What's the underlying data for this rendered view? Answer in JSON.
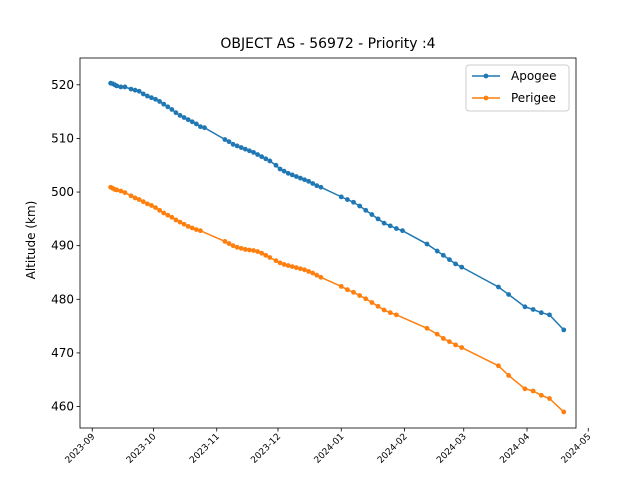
{
  "chart_data": {
    "type": "line",
    "title": "OBJECT AS - 56972 - Priority :4",
    "xlabel": "",
    "ylabel": "Altitude (km)",
    "xlim": [
      "2023-08-26",
      "2024-04-25"
    ],
    "ylim": [
      456,
      525
    ],
    "xticks": [
      "2023-09",
      "2023-10",
      "2023-11",
      "2023-12",
      "2024-01",
      "2024-02",
      "2024-03",
      "2024-04",
      "2024-05"
    ],
    "yticks": [
      460,
      470,
      480,
      490,
      500,
      510,
      520
    ],
    "grid": false,
    "legend_position": "top-right",
    "series": [
      {
        "name": "Apogee",
        "color": "#1f77b4",
        "points": [
          [
            "2023-09-10",
            520.3
          ],
          [
            "2023-09-11",
            520.2
          ],
          [
            "2023-09-12",
            520.0
          ],
          [
            "2023-09-13",
            519.8
          ],
          [
            "2023-09-15",
            519.6
          ],
          [
            "2023-09-17",
            519.6
          ],
          [
            "2023-09-20",
            519.2
          ],
          [
            "2023-09-22",
            519.0
          ],
          [
            "2023-09-24",
            518.8
          ],
          [
            "2023-09-26",
            518.3
          ],
          [
            "2023-09-28",
            517.9
          ],
          [
            "2023-09-30",
            517.6
          ],
          [
            "2023-10-02",
            517.3
          ],
          [
            "2023-10-04",
            516.9
          ],
          [
            "2023-10-06",
            516.4
          ],
          [
            "2023-10-08",
            515.9
          ],
          [
            "2023-10-10",
            515.4
          ],
          [
            "2023-10-12",
            514.8
          ],
          [
            "2023-10-14",
            514.3
          ],
          [
            "2023-10-16",
            513.9
          ],
          [
            "2023-10-18",
            513.5
          ],
          [
            "2023-10-20",
            513.1
          ],
          [
            "2023-10-22",
            512.7
          ],
          [
            "2023-10-24",
            512.2
          ],
          [
            "2023-10-26",
            512.0
          ],
          [
            "2023-11-05",
            509.8
          ],
          [
            "2023-11-07",
            509.4
          ],
          [
            "2023-11-09",
            508.9
          ],
          [
            "2023-11-11",
            508.6
          ],
          [
            "2023-11-13",
            508.3
          ],
          [
            "2023-11-15",
            508.0
          ],
          [
            "2023-11-17",
            507.7
          ],
          [
            "2023-11-19",
            507.4
          ],
          [
            "2023-11-21",
            507.0
          ],
          [
            "2023-11-23",
            506.6
          ],
          [
            "2023-11-25",
            506.2
          ],
          [
            "2023-11-27",
            505.8
          ],
          [
            "2023-11-30",
            505.0
          ],
          [
            "2023-12-02",
            504.3
          ],
          [
            "2023-12-04",
            503.9
          ],
          [
            "2023-12-06",
            503.5
          ],
          [
            "2023-12-08",
            503.2
          ],
          [
            "2023-12-10",
            502.9
          ],
          [
            "2023-12-12",
            502.6
          ],
          [
            "2023-12-14",
            502.3
          ],
          [
            "2023-12-16",
            502.0
          ],
          [
            "2023-12-18",
            501.6
          ],
          [
            "2023-12-20",
            501.2
          ],
          [
            "2023-12-22",
            500.9
          ],
          [
            "2024-01-01",
            499.1
          ],
          [
            "2024-01-04",
            498.6
          ],
          [
            "2024-01-07",
            498.1
          ],
          [
            "2024-01-10",
            497.4
          ],
          [
            "2024-01-13",
            496.6
          ],
          [
            "2024-01-16",
            495.8
          ],
          [
            "2024-01-19",
            495.0
          ],
          [
            "2024-01-22",
            494.2
          ],
          [
            "2024-01-25",
            493.7
          ],
          [
            "2024-01-28",
            493.2
          ],
          [
            "2024-01-31",
            492.8
          ],
          [
            "2024-02-12",
            490.3
          ],
          [
            "2024-02-17",
            489.0
          ],
          [
            "2024-02-20",
            488.2
          ],
          [
            "2024-02-23",
            487.4
          ],
          [
            "2024-02-26",
            486.6
          ],
          [
            "2024-02-29",
            486.0
          ],
          [
            "2024-03-18",
            482.3
          ],
          [
            "2024-03-23",
            480.9
          ],
          [
            "2024-03-31",
            478.6
          ],
          [
            "2024-04-04",
            478.1
          ],
          [
            "2024-04-08",
            477.5
          ],
          [
            "2024-04-12",
            477.1
          ],
          [
            "2024-04-19",
            474.3
          ]
        ]
      },
      {
        "name": "Perigee",
        "color": "#ff7f0e",
        "points": [
          [
            "2023-09-10",
            500.9
          ],
          [
            "2023-09-11",
            500.7
          ],
          [
            "2023-09-12",
            500.5
          ],
          [
            "2023-09-13",
            500.4
          ],
          [
            "2023-09-15",
            500.2
          ],
          [
            "2023-09-17",
            499.9
          ],
          [
            "2023-09-20",
            499.3
          ],
          [
            "2023-09-22",
            498.9
          ],
          [
            "2023-09-24",
            498.6
          ],
          [
            "2023-09-26",
            498.2
          ],
          [
            "2023-09-28",
            497.8
          ],
          [
            "2023-09-30",
            497.5
          ],
          [
            "2023-10-02",
            497.1
          ],
          [
            "2023-10-04",
            496.6
          ],
          [
            "2023-10-06",
            496.1
          ],
          [
            "2023-10-08",
            495.7
          ],
          [
            "2023-10-10",
            495.3
          ],
          [
            "2023-10-12",
            494.8
          ],
          [
            "2023-10-14",
            494.4
          ],
          [
            "2023-10-16",
            494.0
          ],
          [
            "2023-10-18",
            493.6
          ],
          [
            "2023-10-20",
            493.3
          ],
          [
            "2023-10-22",
            493.0
          ],
          [
            "2023-10-24",
            492.8
          ],
          [
            "2023-11-05",
            490.8
          ],
          [
            "2023-11-07",
            490.4
          ],
          [
            "2023-11-09",
            490.0
          ],
          [
            "2023-11-11",
            489.7
          ],
          [
            "2023-11-13",
            489.5
          ],
          [
            "2023-11-15",
            489.3
          ],
          [
            "2023-11-17",
            489.2
          ],
          [
            "2023-11-19",
            489.1
          ],
          [
            "2023-11-21",
            488.9
          ],
          [
            "2023-11-23",
            488.6
          ],
          [
            "2023-11-25",
            488.2
          ],
          [
            "2023-11-27",
            487.8
          ],
          [
            "2023-11-30",
            487.2
          ],
          [
            "2023-12-02",
            486.8
          ],
          [
            "2023-12-04",
            486.5
          ],
          [
            "2023-12-06",
            486.3
          ],
          [
            "2023-12-08",
            486.1
          ],
          [
            "2023-12-10",
            485.9
          ],
          [
            "2023-12-12",
            485.7
          ],
          [
            "2023-12-14",
            485.5
          ],
          [
            "2023-12-16",
            485.2
          ],
          [
            "2023-12-18",
            484.9
          ],
          [
            "2023-12-20",
            484.5
          ],
          [
            "2023-12-22",
            484.1
          ],
          [
            "2024-01-01",
            482.4
          ],
          [
            "2024-01-04",
            481.8
          ],
          [
            "2024-01-07",
            481.3
          ],
          [
            "2024-01-10",
            480.7
          ],
          [
            "2024-01-13",
            480.1
          ],
          [
            "2024-01-16",
            479.4
          ],
          [
            "2024-01-19",
            478.7
          ],
          [
            "2024-01-22",
            478.0
          ],
          [
            "2024-01-25",
            477.5
          ],
          [
            "2024-01-28",
            477.1
          ],
          [
            "2024-02-12",
            474.6
          ],
          [
            "2024-02-17",
            473.5
          ],
          [
            "2024-02-20",
            472.7
          ],
          [
            "2024-02-23",
            472.1
          ],
          [
            "2024-02-26",
            471.5
          ],
          [
            "2024-02-29",
            471.0
          ],
          [
            "2024-03-18",
            467.6
          ],
          [
            "2024-03-23",
            465.8
          ],
          [
            "2024-03-31",
            463.3
          ],
          [
            "2024-04-04",
            462.9
          ],
          [
            "2024-04-08",
            462.1
          ],
          [
            "2024-04-12",
            461.5
          ],
          [
            "2024-04-19",
            459.0
          ]
        ]
      }
    ]
  }
}
